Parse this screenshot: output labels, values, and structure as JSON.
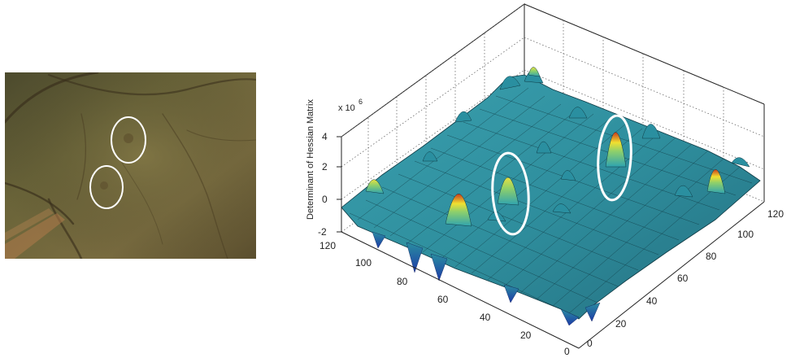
{
  "left_panel": {
    "image": "retinal-fundus-photo",
    "annotations": [
      "white-ellipse",
      "white-ellipse"
    ]
  },
  "chart_data": {
    "type": "surface",
    "zlabel": "Determinant of Hessian Matrix",
    "z_scale": "x 10",
    "z_exponent": "6",
    "x_ticks": [
      "0",
      "20",
      "40",
      "60",
      "80",
      "100",
      "120"
    ],
    "y_ticks": [
      "0",
      "20",
      "40",
      "60",
      "80",
      "100",
      "120"
    ],
    "z_ticks": [
      "4",
      "2",
      "0",
      "-2"
    ],
    "xlim": [
      0,
      120
    ],
    "ylim": [
      0,
      120
    ],
    "zlim": [
      -2,
      4
    ],
    "colormap": "jet",
    "grid": true,
    "annotations": [
      "white-ellipse",
      "white-ellipse"
    ]
  }
}
